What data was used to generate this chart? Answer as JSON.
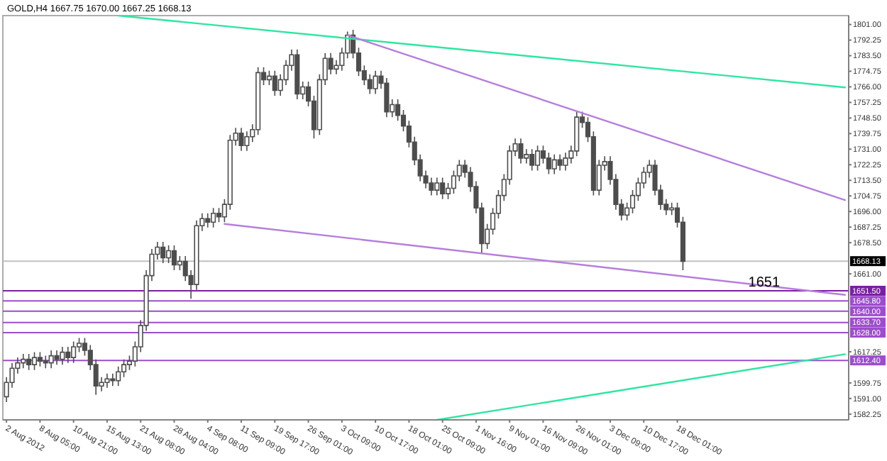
{
  "chart_data": {
    "type": "candlestick",
    "title": "GOLD,H4  1667.75 1670.00 1667.25 1668.13",
    "categories": [
      "2 Aug 2012",
      null,
      null,
      null,
      null,
      null,
      "8 Aug 05:00",
      null,
      null,
      null,
      null,
      null,
      "10 Aug 21:00",
      null,
      null,
      null,
      null,
      null,
      "15 Aug 13:00",
      null,
      null,
      null,
      null,
      null,
      "21 Aug 08:00",
      null,
      null,
      null,
      null,
      null,
      "28 Aug 04:00",
      null,
      null,
      null,
      null,
      null,
      "4 Sep 08:00",
      null,
      null,
      null,
      null,
      null,
      "11 Sep 09:00",
      null,
      null,
      null,
      null,
      null,
      "19 Sep 17:00",
      null,
      null,
      null,
      null,
      null,
      "26 Sep 01:00",
      null,
      null,
      null,
      null,
      null,
      "3 Oct 09:00",
      null,
      null,
      null,
      null,
      null,
      "10 Oct 17:00",
      null,
      null,
      null,
      null,
      null,
      "18 Oct 01:00",
      null,
      null,
      null,
      null,
      null,
      "25 Oct 09:00",
      null,
      null,
      null,
      null,
      null,
      "1 Nov 16:00",
      null,
      null,
      null,
      null,
      null,
      "9 Nov 01:00",
      null,
      null,
      null,
      null,
      null,
      "16 Nov 09:00",
      null,
      null,
      null,
      null,
      null,
      "26 Nov 01:00",
      null,
      null,
      null,
      null,
      null,
      "3 Dec 09:00",
      null,
      null,
      null,
      null,
      null,
      "10 Dec 17:00",
      null,
      null,
      null,
      null,
      null,
      "18 Dec 01:00",
      null,
      null,
      null,
      null,
      null,
      null,
      null,
      null,
      null,
      null,
      null,
      null,
      null,
      null,
      null,
      null,
      null,
      null,
      null,
      null,
      null,
      null,
      null,
      null,
      null,
      null,
      null,
      null,
      null,
      null
    ],
    "ylim": [
      1579,
      1806
    ],
    "yticks": [
      {
        "value": 1801,
        "label": "1801.00"
      },
      {
        "value": 1792.25,
        "label": "1792.25"
      },
      {
        "value": 1783.5,
        "label": "1783.50"
      },
      {
        "value": 1774.75,
        "label": "1774.75"
      },
      {
        "value": 1766,
        "label": "1766.00"
      },
      {
        "value": 1757.25,
        "label": "1757.25"
      },
      {
        "value": 1748.5,
        "label": "1748.50"
      },
      {
        "value": 1739.75,
        "label": "1739.75"
      },
      {
        "value": 1731,
        "label": "1731.00"
      },
      {
        "value": 1722.25,
        "label": "1722.25"
      },
      {
        "value": 1713.5,
        "label": "1713.50"
      },
      {
        "value": 1704.75,
        "label": "1704.75"
      },
      {
        "value": 1696,
        "label": "1696.00"
      },
      {
        "value": 1687.25,
        "label": "1687.25"
      },
      {
        "value": 1678.5,
        "label": "1678.50"
      },
      {
        "value": 1661,
        "label": "1661.00"
      },
      {
        "value": 1617.25,
        "label": "1617.25"
      },
      {
        "value": 1599.75,
        "label": "1599.75"
      },
      {
        "value": 1591,
        "label": "1591.00"
      },
      {
        "value": 1582.25,
        "label": "1582.25"
      }
    ],
    "grid": false,
    "ref_lines": [
      {
        "axis": "y",
        "value": 1668.13,
        "label": "1668.13",
        "color": "#c0c0c0"
      },
      {
        "axis": "y",
        "value": 1651.5,
        "label": "1651.50",
        "color": "#7b1fa2"
      },
      {
        "axis": "y",
        "value": 1645.8,
        "label": "1645.80",
        "color": "#9c4dcc"
      },
      {
        "axis": "y",
        "value": 1640,
        "label": "1640.00",
        "color": "#9c4dcc"
      },
      {
        "axis": "y",
        "value": 1633.7,
        "label": "1633.70",
        "color": "#9c4dcc"
      },
      {
        "axis": "y",
        "value": 1628,
        "label": "1628.00",
        "color": "#9c4dcc"
      },
      {
        "axis": "y",
        "value": 1612.4,
        "label": "1612.40",
        "color": "#9c4dcc"
      }
    ],
    "annotations": [
      {
        "text": "1651",
        "y": 1651.5
      }
    ],
    "series": [
      {
        "color": "#4d4d4d",
        "ohlc": [
          [
            1592,
            1603,
            1589,
            1600
          ],
          [
            1600,
            1611,
            1597,
            1608
          ],
          [
            1608,
            1614,
            1605,
            1611
          ],
          [
            1611,
            1616,
            1608,
            1613
          ],
          [
            1613,
            1616,
            1607,
            1610
          ],
          [
            1610,
            1617,
            1607,
            1614
          ],
          [
            1614,
            1617,
            1609,
            1612
          ],
          [
            1612,
            1615,
            1608,
            1611
          ],
          [
            1611,
            1618,
            1608,
            1615
          ],
          [
            1615,
            1618,
            1610,
            1613
          ],
          [
            1613,
            1620,
            1610,
            1617
          ],
          [
            1617,
            1620,
            1611,
            1614
          ],
          [
            1614,
            1623,
            1611,
            1620
          ],
          [
            1620,
            1625,
            1617,
            1622
          ],
          [
            1622,
            1625,
            1615,
            1618
          ],
          [
            1618,
            1621,
            1607,
            1610
          ],
          [
            1610,
            1613,
            1593,
            1598
          ],
          [
            1598,
            1603,
            1595,
            1600
          ],
          [
            1600,
            1605,
            1597,
            1602
          ],
          [
            1602,
            1605,
            1598,
            1601
          ],
          [
            1601,
            1609,
            1598,
            1606
          ],
          [
            1606,
            1613,
            1603,
            1610
          ],
          [
            1610,
            1615,
            1607,
            1612
          ],
          [
            1612,
            1623,
            1609,
            1620
          ],
          [
            1620,
            1635,
            1617,
            1632
          ],
          [
            1632,
            1663,
            1629,
            1660
          ],
          [
            1660,
            1675,
            1657,
            1672
          ],
          [
            1672,
            1679,
            1669,
            1676
          ],
          [
            1676,
            1679,
            1667,
            1670
          ],
          [
            1670,
            1677,
            1667,
            1674
          ],
          [
            1674,
            1677,
            1663,
            1666
          ],
          [
            1666,
            1671,
            1663,
            1668
          ],
          [
            1668,
            1671,
            1657,
            1660
          ],
          [
            1660,
            1663,
            1647,
            1655
          ],
          [
            1655,
            1691,
            1652,
            1688
          ],
          [
            1688,
            1695,
            1685,
            1692
          ],
          [
            1692,
            1695,
            1687,
            1690
          ],
          [
            1690,
            1698,
            1687,
            1695
          ],
          [
            1695,
            1698,
            1690,
            1693
          ],
          [
            1693,
            1703,
            1690,
            1700
          ],
          [
            1700,
            1739,
            1697,
            1736
          ],
          [
            1736,
            1743,
            1733,
            1740
          ],
          [
            1740,
            1743,
            1730,
            1733
          ],
          [
            1733,
            1741,
            1730,
            1738
          ],
          [
            1738,
            1745,
            1735,
            1742
          ],
          [
            1742,
            1777,
            1739,
            1774
          ],
          [
            1774,
            1777,
            1767,
            1770
          ],
          [
            1770,
            1775,
            1767,
            1772
          ],
          [
            1772,
            1775,
            1761,
            1764
          ],
          [
            1764,
            1773,
            1761,
            1770
          ],
          [
            1770,
            1781,
            1767,
            1778
          ],
          [
            1778,
            1787,
            1775,
            1784
          ],
          [
            1784,
            1787,
            1759,
            1762
          ],
          [
            1762,
            1769,
            1759,
            1766
          ],
          [
            1766,
            1769,
            1755,
            1758
          ],
          [
            1758,
            1761,
            1737,
            1742
          ],
          [
            1742,
            1773,
            1739,
            1770
          ],
          [
            1770,
            1785,
            1767,
            1782
          ],
          [
            1782,
            1785,
            1773,
            1776
          ],
          [
            1776,
            1781,
            1773,
            1778
          ],
          [
            1778,
            1788,
            1775,
            1785
          ],
          [
            1785,
            1797,
            1782,
            1795
          ],
          [
            1795,
            1798,
            1782,
            1785
          ],
          [
            1785,
            1788,
            1772,
            1775
          ],
          [
            1775,
            1778,
            1767,
            1770
          ],
          [
            1770,
            1773,
            1762,
            1765
          ],
          [
            1765,
            1775,
            1762,
            1772
          ],
          [
            1772,
            1775,
            1765,
            1768
          ],
          [
            1768,
            1771,
            1749,
            1752
          ],
          [
            1752,
            1759,
            1749,
            1756
          ],
          [
            1756,
            1759,
            1747,
            1750
          ],
          [
            1750,
            1753,
            1741,
            1744
          ],
          [
            1744,
            1747,
            1732,
            1735
          ],
          [
            1735,
            1738,
            1722,
            1725
          ],
          [
            1725,
            1728,
            1713,
            1716
          ],
          [
            1716,
            1719,
            1709,
            1712
          ],
          [
            1712,
            1715,
            1705,
            1708
          ],
          [
            1708,
            1715,
            1705,
            1712
          ],
          [
            1712,
            1715,
            1703,
            1706
          ],
          [
            1706,
            1712,
            1703,
            1709
          ],
          [
            1709,
            1719,
            1706,
            1716
          ],
          [
            1716,
            1725,
            1713,
            1722
          ],
          [
            1722,
            1725,
            1715,
            1718
          ],
          [
            1718,
            1721,
            1707,
            1710
          ],
          [
            1710,
            1713,
            1695,
            1698
          ],
          [
            1698,
            1701,
            1673,
            1678
          ],
          [
            1678,
            1689,
            1675,
            1686
          ],
          [
            1686,
            1698,
            1683,
            1695
          ],
          [
            1695,
            1708,
            1692,
            1705
          ],
          [
            1705,
            1717,
            1702,
            1714
          ],
          [
            1714,
            1733,
            1711,
            1730
          ],
          [
            1730,
            1737,
            1727,
            1734
          ],
          [
            1734,
            1737,
            1723,
            1726
          ],
          [
            1726,
            1731,
            1723,
            1728
          ],
          [
            1728,
            1731,
            1719,
            1722
          ],
          [
            1722,
            1733,
            1719,
            1730
          ],
          [
            1730,
            1733,
            1723,
            1726
          ],
          [
            1726,
            1729,
            1717,
            1720
          ],
          [
            1720,
            1728,
            1717,
            1725
          ],
          [
            1725,
            1728,
            1719,
            1722
          ],
          [
            1722,
            1729,
            1719,
            1726
          ],
          [
            1726,
            1733,
            1723,
            1730
          ],
          [
            1730,
            1752,
            1727,
            1749
          ],
          [
            1749,
            1752,
            1743,
            1746
          ],
          [
            1746,
            1749,
            1735,
            1738
          ],
          [
            1738,
            1741,
            1705,
            1708
          ],
          [
            1708,
            1725,
            1705,
            1722
          ],
          [
            1722,
            1727,
            1719,
            1724
          ],
          [
            1724,
            1727,
            1711,
            1714
          ],
          [
            1714,
            1717,
            1697,
            1700
          ],
          [
            1700,
            1703,
            1691,
            1694
          ],
          [
            1694,
            1701,
            1691,
            1698
          ],
          [
            1698,
            1708,
            1695,
            1705
          ],
          [
            1705,
            1715,
            1702,
            1712
          ],
          [
            1712,
            1721,
            1709,
            1718
          ],
          [
            1718,
            1725,
            1715,
            1722
          ],
          [
            1722,
            1725,
            1705,
            1708
          ],
          [
            1708,
            1711,
            1697,
            1700
          ],
          [
            1700,
            1703,
            1694,
            1697
          ],
          [
            1697,
            1701,
            1694,
            1698
          ],
          [
            1698,
            1701,
            1687,
            1690
          ],
          [
            1690,
            1693,
            1663,
            1668
          ],
          null,
          null,
          null,
          null,
          null,
          null,
          null,
          null,
          null,
          null,
          null,
          null,
          null,
          null,
          null,
          null,
          null,
          null,
          null,
          null,
          null,
          null,
          null,
          null,
          null,
          null,
          null,
          null,
          null
        ]
      },
      {
        "type": "line",
        "color": "#2ee6a0",
        "values": [
          null,
          null,
          null,
          null,
          null,
          null,
          null,
          null,
          null,
          null,
          null,
          null,
          null,
          null,
          null,
          null,
          null,
          null,
          null,
          null,
          1806,
          null,
          null,
          null,
          null,
          null,
          null,
          null,
          null,
          null,
          null,
          null,
          null,
          null,
          null,
          null,
          null,
          null,
          null,
          null,
          null,
          null,
          null,
          null,
          null,
          null,
          null,
          null,
          null,
          null,
          null,
          null,
          null,
          null,
          null,
          null,
          null,
          null,
          null,
          null,
          null,
          null,
          null,
          null,
          null,
          null,
          null,
          null,
          null,
          null,
          null,
          null,
          null,
          null,
          null,
          null,
          null,
          null,
          null,
          null,
          null,
          null,
          null,
          null,
          null,
          null,
          null,
          null,
          null,
          null,
          null,
          null,
          null,
          null,
          null,
          null,
          null,
          null,
          null,
          null,
          null,
          null,
          null,
          null,
          null,
          null,
          null,
          null,
          null,
          null,
          null,
          null,
          null,
          null,
          null,
          null,
          null,
          null,
          null,
          null,
          null,
          null,
          null,
          null,
          null,
          null,
          null,
          null,
          null,
          null,
          null,
          null,
          null,
          null,
          null,
          null,
          null,
          null,
          null,
          null,
          null,
          null,
          null,
          null,
          null,
          null,
          null,
          null,
          null,
          null,
          1765.7
        ]
      },
      {
        "type": "line",
        "color": "#b57edc",
        "values": [
          null,
          null,
          null,
          null,
          null,
          null,
          null,
          null,
          null,
          null,
          null,
          null,
          null,
          null,
          null,
          null,
          null,
          null,
          null,
          null,
          null,
          null,
          null,
          null,
          null,
          null,
          null,
          null,
          null,
          null,
          null,
          null,
          null,
          null,
          null,
          null,
          null,
          null,
          null,
          null,
          null,
          null,
          null,
          null,
          null,
          null,
          null,
          null,
          null,
          null,
          null,
          null,
          null,
          null,
          null,
          null,
          null,
          null,
          null,
          null,
          null,
          1795,
          null,
          null,
          null,
          null,
          null,
          null,
          null,
          null,
          null,
          null,
          null,
          null,
          null,
          null,
          null,
          null,
          null,
          null,
          null,
          null,
          null,
          null,
          null,
          null,
          null,
          null,
          null,
          null,
          null,
          null,
          null,
          null,
          null,
          null,
          null,
          null,
          null,
          null,
          null,
          null,
          null,
          null,
          null,
          null,
          null,
          null,
          null,
          null,
          null,
          null,
          null,
          null,
          null,
          null,
          null,
          null,
          null,
          null,
          null,
          null,
          null,
          null,
          null,
          null,
          null,
          null,
          null,
          null,
          null,
          null,
          null,
          null,
          null,
          null,
          null,
          null,
          null,
          null,
          null,
          null,
          null,
          null,
          null,
          null,
          null,
          null,
          null,
          null,
          1702.4
        ]
      },
      {
        "type": "line",
        "color": "#b57edc",
        "values": [
          null,
          null,
          null,
          null,
          null,
          null,
          null,
          null,
          null,
          null,
          null,
          null,
          null,
          null,
          null,
          null,
          null,
          null,
          null,
          null,
          null,
          null,
          null,
          null,
          null,
          null,
          null,
          null,
          null,
          null,
          null,
          null,
          null,
          null,
          null,
          null,
          null,
          null,
          null,
          1689,
          null,
          null,
          null,
          null,
          null,
          null,
          null,
          null,
          null,
          null,
          null,
          null,
          null,
          null,
          null,
          null,
          null,
          null,
          null,
          null,
          null,
          null,
          null,
          null,
          null,
          null,
          null,
          null,
          null,
          null,
          null,
          null,
          null,
          null,
          null,
          null,
          null,
          null,
          null,
          null,
          null,
          null,
          null,
          null,
          null,
          null,
          null,
          null,
          null,
          null,
          null,
          null,
          null,
          null,
          null,
          null,
          null,
          null,
          null,
          null,
          null,
          null,
          null,
          null,
          null,
          null,
          null,
          null,
          null,
          null,
          null,
          null,
          null,
          null,
          null,
          null,
          null,
          null,
          null,
          null,
          null,
          null,
          null,
          null,
          null,
          null,
          null,
          null,
          null,
          null,
          null,
          null,
          null,
          null,
          null,
          null,
          null,
          null,
          null,
          null,
          null,
          null,
          null,
          null,
          null,
          null,
          null,
          null,
          null,
          null,
          1649.2
        ]
      },
      {
        "type": "line",
        "color": "#2ee6a0",
        "values": [
          null,
          null,
          null,
          null,
          null,
          null,
          null,
          null,
          null,
          null,
          null,
          null,
          null,
          null,
          null,
          null,
          null,
          null,
          null,
          null,
          null,
          null,
          null,
          null,
          null,
          null,
          null,
          null,
          null,
          null,
          null,
          null,
          null,
          null,
          null,
          null,
          null,
          null,
          null,
          null,
          null,
          null,
          null,
          null,
          null,
          null,
          null,
          null,
          null,
          null,
          null,
          null,
          null,
          null,
          null,
          null,
          null,
          null,
          null,
          null,
          null,
          null,
          null,
          null,
          null,
          null,
          null,
          null,
          null,
          null,
          null,
          null,
          null,
          null,
          null,
          null,
          null,
          1579,
          null,
          null,
          null,
          null,
          null,
          null,
          null,
          null,
          null,
          null,
          null,
          null,
          null,
          null,
          null,
          null,
          null,
          null,
          null,
          null,
          null,
          null,
          null,
          null,
          null,
          null,
          null,
          null,
          null,
          null,
          null,
          null,
          null,
          null,
          null,
          null,
          null,
          null,
          null,
          null,
          null,
          null,
          null,
          null,
          null,
          null,
          null,
          null,
          null,
          null,
          null,
          null,
          null,
          null,
          null,
          null,
          null,
          null,
          null,
          null,
          null,
          null,
          null,
          null,
          null,
          null,
          null,
          null,
          null,
          null,
          null,
          null,
          1615.9
        ]
      }
    ]
  }
}
